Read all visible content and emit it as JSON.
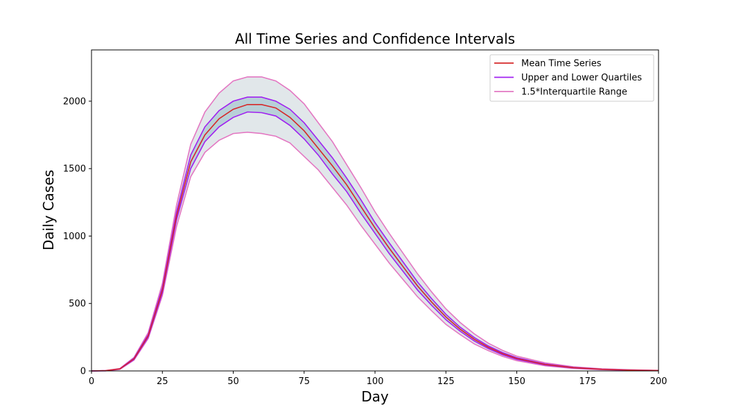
{
  "chart_data": {
    "type": "line",
    "title": "All Time Series and Confidence Intervals",
    "xlabel": "Day",
    "ylabel": "Daily Cases",
    "xlim": [
      0,
      200
    ],
    "ylim": [
      0,
      2380
    ],
    "xticks": [
      0,
      25,
      50,
      75,
      100,
      125,
      150,
      175,
      200
    ],
    "yticks": [
      0,
      500,
      1000,
      1500,
      2000
    ],
    "legend_position": "top-right",
    "x": [
      0,
      5,
      10,
      15,
      20,
      25,
      30,
      35,
      40,
      45,
      50,
      55,
      60,
      65,
      70,
      75,
      80,
      85,
      90,
      95,
      100,
      105,
      110,
      115,
      120,
      125,
      130,
      135,
      140,
      145,
      150,
      160,
      170,
      180,
      190,
      200
    ],
    "series": [
      {
        "name": "Mean Time Series",
        "color": "#d62728",
        "values": [
          0,
          2,
          15,
          90,
          260,
          600,
          1150,
          1550,
          1750,
          1870,
          1940,
          1975,
          1975,
          1950,
          1880,
          1780,
          1650,
          1520,
          1380,
          1220,
          1060,
          910,
          770,
          630,
          510,
          400,
          310,
          235,
          175,
          128,
          92,
          48,
          24,
          12,
          6,
          3
        ]
      },
      {
        "name": "Upper and Lower Quartiles",
        "color": "#a020f0",
        "upper": [
          0,
          2,
          16,
          95,
          270,
          620,
          1180,
          1600,
          1810,
          1930,
          2000,
          2030,
          2030,
          2000,
          1940,
          1840,
          1710,
          1580,
          1430,
          1270,
          1100,
          950,
          805,
          660,
          535,
          420,
          325,
          248,
          185,
          136,
          98,
          52,
          26,
          13,
          7,
          3
        ],
        "lower": [
          0,
          1,
          14,
          85,
          250,
          580,
          1120,
          1500,
          1700,
          1810,
          1880,
          1920,
          1915,
          1890,
          1820,
          1720,
          1600,
          1460,
          1330,
          1170,
          1020,
          870,
          735,
          600,
          485,
          380,
          295,
          222,
          165,
          120,
          86,
          44,
          22,
          11,
          5,
          2
        ]
      },
      {
        "name": "1.5*Interquartile Range",
        "color": "#e377c2",
        "upper": [
          0,
          3,
          18,
          100,
          285,
          650,
          1230,
          1680,
          1920,
          2060,
          2150,
          2180,
          2180,
          2150,
          2080,
          1980,
          1840,
          1700,
          1530,
          1360,
          1180,
          1020,
          870,
          720,
          585,
          460,
          360,
          275,
          205,
          152,
          110,
          60,
          31,
          16,
          8,
          4
        ],
        "lower": [
          0,
          1,
          12,
          80,
          240,
          560,
          1070,
          1440,
          1620,
          1710,
          1760,
          1770,
          1760,
          1740,
          1690,
          1590,
          1490,
          1360,
          1230,
          1080,
          940,
          800,
          675,
          550,
          445,
          345,
          270,
          200,
          150,
          108,
          76,
          38,
          18,
          9,
          4,
          2
        ]
      }
    ],
    "ensemble_color": "#a9c8d2"
  }
}
